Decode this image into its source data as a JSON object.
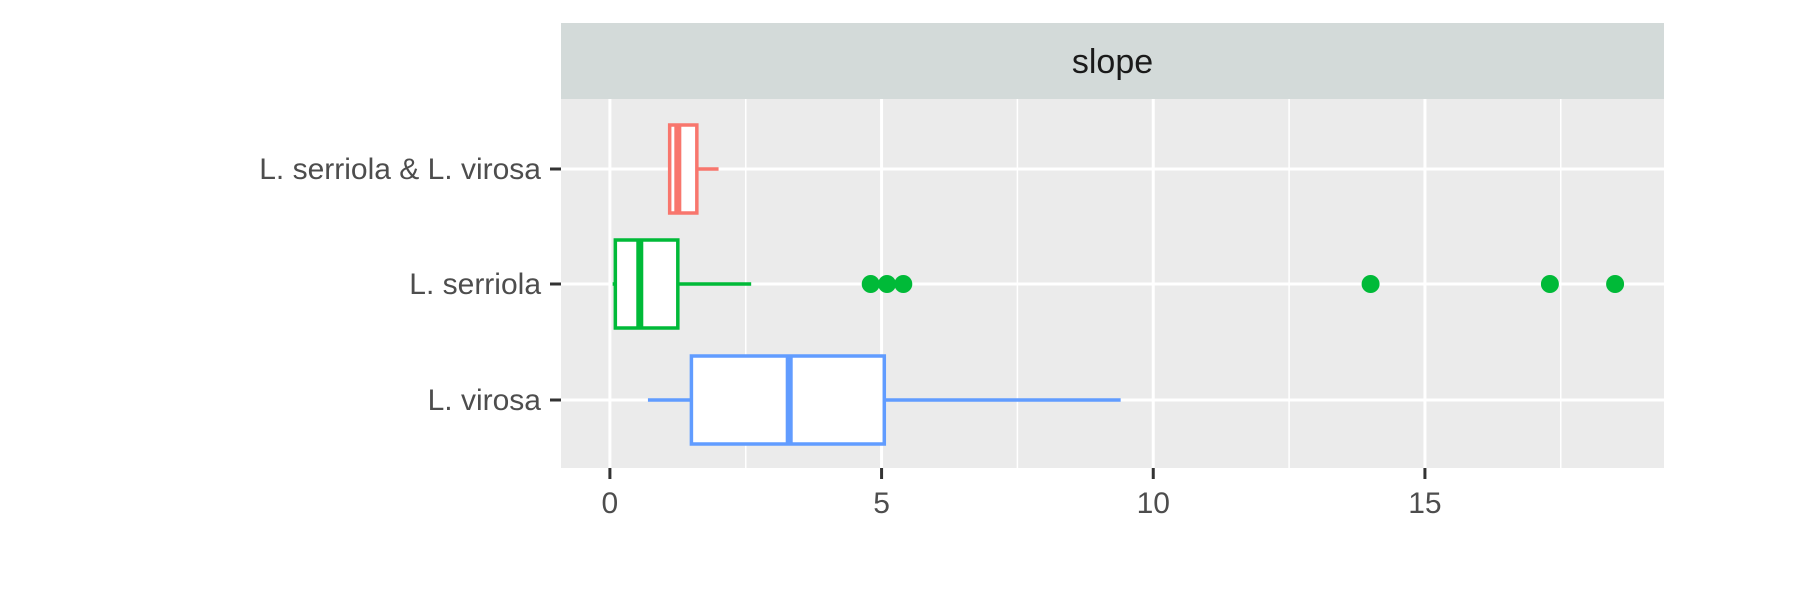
{
  "chart_data": {
    "type": "boxplot",
    "orientation": "horizontal",
    "facet_label": "slope",
    "xlabel": "",
    "ylabel": "",
    "xlim": [
      -0.9,
      19.4
    ],
    "x_ticks": [
      0,
      5,
      10,
      15
    ],
    "x_tick_labels": [
      "0",
      "5",
      "10",
      "15"
    ],
    "x_minor_gridlines": [
      2.5,
      7.5,
      12.5,
      17.5
    ],
    "grid": true,
    "legend": "none",
    "categories": [
      "L. serriola & L. virosa",
      "L. serriola",
      "L. virosa"
    ],
    "series": [
      {
        "category": "L. serriola & L. virosa",
        "color": "#F8766D",
        "whisker_low": 1.1,
        "q1": 1.1,
        "median": 1.25,
        "q3": 1.6,
        "whisker_high": 2.0,
        "outliers": []
      },
      {
        "category": "L. serriola",
        "color": "#00BA38",
        "whisker_low": 0.05,
        "q1": 0.1,
        "median": 0.55,
        "q3": 1.25,
        "whisker_high": 2.6,
        "outliers": [
          4.8,
          5.1,
          5.4,
          14.0,
          17.3,
          18.5
        ]
      },
      {
        "category": "L. virosa",
        "color": "#619CFF",
        "whisker_low": 0.7,
        "q1": 1.5,
        "median": 3.3,
        "q3": 5.05,
        "whisker_high": 9.4,
        "outliers": []
      }
    ],
    "colors": {
      "panel_background": "#EBEBEB",
      "strip_background": "#D3DAD9",
      "gridline": "#FFFFFF",
      "axis_text": "#4D4D4D",
      "tick_mark": "#333333"
    }
  }
}
